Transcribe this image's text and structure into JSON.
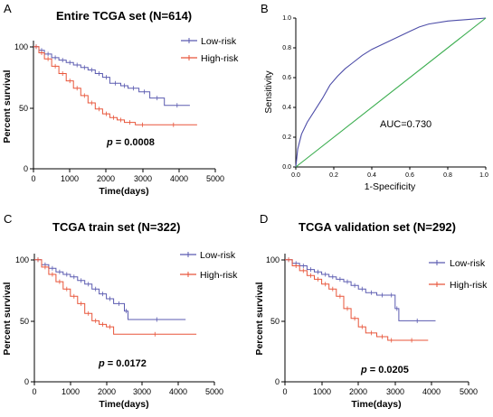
{
  "colors": {
    "low": "#5b5bb0",
    "high": "#e8553a",
    "diag": "#3cae50",
    "roc": "#4d4da8",
    "axis": "#000000"
  },
  "chart_data": [
    {
      "type": "line",
      "panel": "A",
      "title": "Entire TCGA set (N=614)",
      "xlabel": "Time(days)",
      "ylabel": "Percent survival",
      "xlim": [
        0,
        5000
      ],
      "ylim": [
        0,
        105
      ],
      "xticks": [
        "0",
        "1000",
        "2000",
        "3000",
        "4000",
        "5000"
      ],
      "yticks": [
        "0",
        "50",
        "100"
      ],
      "legend": [
        "Low-risk",
        "High-risk"
      ],
      "pvalue_prefix": "p",
      "pvalue_text": "= 0.0008",
      "series": [
        {
          "name": "Low-risk",
          "color_key": "low",
          "x": [
            0,
            150,
            300,
            500,
            700,
            900,
            1100,
            1300,
            1500,
            1700,
            1900,
            2100,
            2400,
            2600,
            2900,
            3200,
            3600,
            4300
          ],
          "y": [
            100,
            97,
            94,
            91,
            89,
            87,
            85,
            83,
            81,
            78,
            75,
            70,
            68,
            66,
            63,
            58,
            52,
            52
          ]
        },
        {
          "name": "High-risk",
          "color_key": "high",
          "x": [
            0,
            150,
            300,
            500,
            700,
            900,
            1100,
            1300,
            1500,
            1700,
            1900,
            2100,
            2300,
            2500,
            2800,
            3200,
            4500
          ],
          "y": [
            100,
            95,
            90,
            84,
            78,
            72,
            66,
            60,
            54,
            49,
            45,
            42,
            40,
            38,
            36,
            36,
            36
          ]
        }
      ]
    },
    {
      "type": "line",
      "panel": "B",
      "title": "",
      "xlabel": "1-Specificity",
      "ylabel": "Sensitivity",
      "xlim": [
        0,
        1
      ],
      "ylim": [
        0,
        1
      ],
      "xticks": [
        "0.0",
        "0.2",
        "0.4",
        "0.6",
        "0.8",
        "1.0"
      ],
      "yticks": [
        "0.0",
        "0.2",
        "0.4",
        "0.6",
        "0.8",
        "1.0"
      ],
      "annotation": "AUC=0.730",
      "series": [
        {
          "name": "ROC",
          "color_key": "roc",
          "x": [
            0,
            0.01,
            0.03,
            0.06,
            0.1,
            0.14,
            0.18,
            0.22,
            0.26,
            0.3,
            0.35,
            0.4,
            0.45,
            0.5,
            0.55,
            0.6,
            0.65,
            0.7,
            0.8,
            0.9,
            1.0
          ],
          "y": [
            0,
            0.12,
            0.22,
            0.3,
            0.38,
            0.46,
            0.55,
            0.61,
            0.66,
            0.7,
            0.75,
            0.79,
            0.82,
            0.85,
            0.88,
            0.91,
            0.94,
            0.96,
            0.98,
            0.99,
            1.0
          ]
        },
        {
          "name": "Reference",
          "color_key": "diag",
          "x": [
            0,
            1
          ],
          "y": [
            0,
            1
          ]
        }
      ]
    },
    {
      "type": "line",
      "panel": "C",
      "title": "TCGA train set (N=322)",
      "xlabel": "Time(days)",
      "ylabel": "Percent survival",
      "xlim": [
        0,
        5000
      ],
      "ylim": [
        0,
        105
      ],
      "xticks": [
        "0",
        "1000",
        "2000",
        "3000",
        "4000",
        "5000"
      ],
      "yticks": [
        "0",
        "50",
        "100"
      ],
      "legend": [
        "Low-risk",
        "High-risk"
      ],
      "pvalue_prefix": "p",
      "pvalue_text": "= 0.0172",
      "series": [
        {
          "name": "Low-risk",
          "color_key": "low",
          "x": [
            0,
            200,
            400,
            600,
            800,
            1000,
            1200,
            1400,
            1600,
            1800,
            2000,
            2200,
            2500,
            2600,
            4200
          ],
          "y": [
            100,
            96,
            93,
            90,
            88,
            86,
            83,
            80,
            76,
            72,
            68,
            64,
            58,
            51,
            51
          ]
        },
        {
          "name": "High-risk",
          "color_key": "high",
          "x": [
            0,
            200,
            400,
            600,
            800,
            1000,
            1200,
            1400,
            1600,
            1800,
            2000,
            2200,
            4500
          ],
          "y": [
            100,
            94,
            88,
            82,
            76,
            70,
            64,
            56,
            50,
            47,
            45,
            39,
            39
          ]
        }
      ]
    },
    {
      "type": "line",
      "panel": "D",
      "title": "TCGA validation set (N=292)",
      "xlabel": "Time(days)",
      "ylabel": "Percent survival",
      "xlim": [
        0,
        5000
      ],
      "ylim": [
        0,
        105
      ],
      "xticks": [
        "0",
        "1000",
        "2000",
        "3000",
        "4000",
        "5000"
      ],
      "yticks": [
        "0",
        "50",
        "100"
      ],
      "legend": [
        "Low-risk",
        "High-risk"
      ],
      "pvalue_prefix": "p",
      "pvalue_text": "= 0.0205",
      "series": [
        {
          "name": "Low-risk",
          "color_key": "low",
          "x": [
            0,
            200,
            400,
            600,
            800,
            1000,
            1200,
            1400,
            1600,
            1800,
            2000,
            2200,
            2500,
            2800,
            3000,
            3100,
            4100
          ],
          "y": [
            100,
            97,
            95,
            92,
            90,
            88,
            86,
            84,
            82,
            79,
            76,
            73,
            71,
            71,
            60,
            50,
            50
          ]
        },
        {
          "name": "High-risk",
          "color_key": "high",
          "x": [
            0,
            200,
            400,
            600,
            800,
            1000,
            1200,
            1400,
            1600,
            1800,
            2000,
            2200,
            2500,
            2800,
            3000,
            3900
          ],
          "y": [
            100,
            95,
            91,
            87,
            84,
            80,
            76,
            70,
            60,
            52,
            45,
            40,
            37,
            34,
            34,
            34
          ]
        }
      ]
    }
  ]
}
